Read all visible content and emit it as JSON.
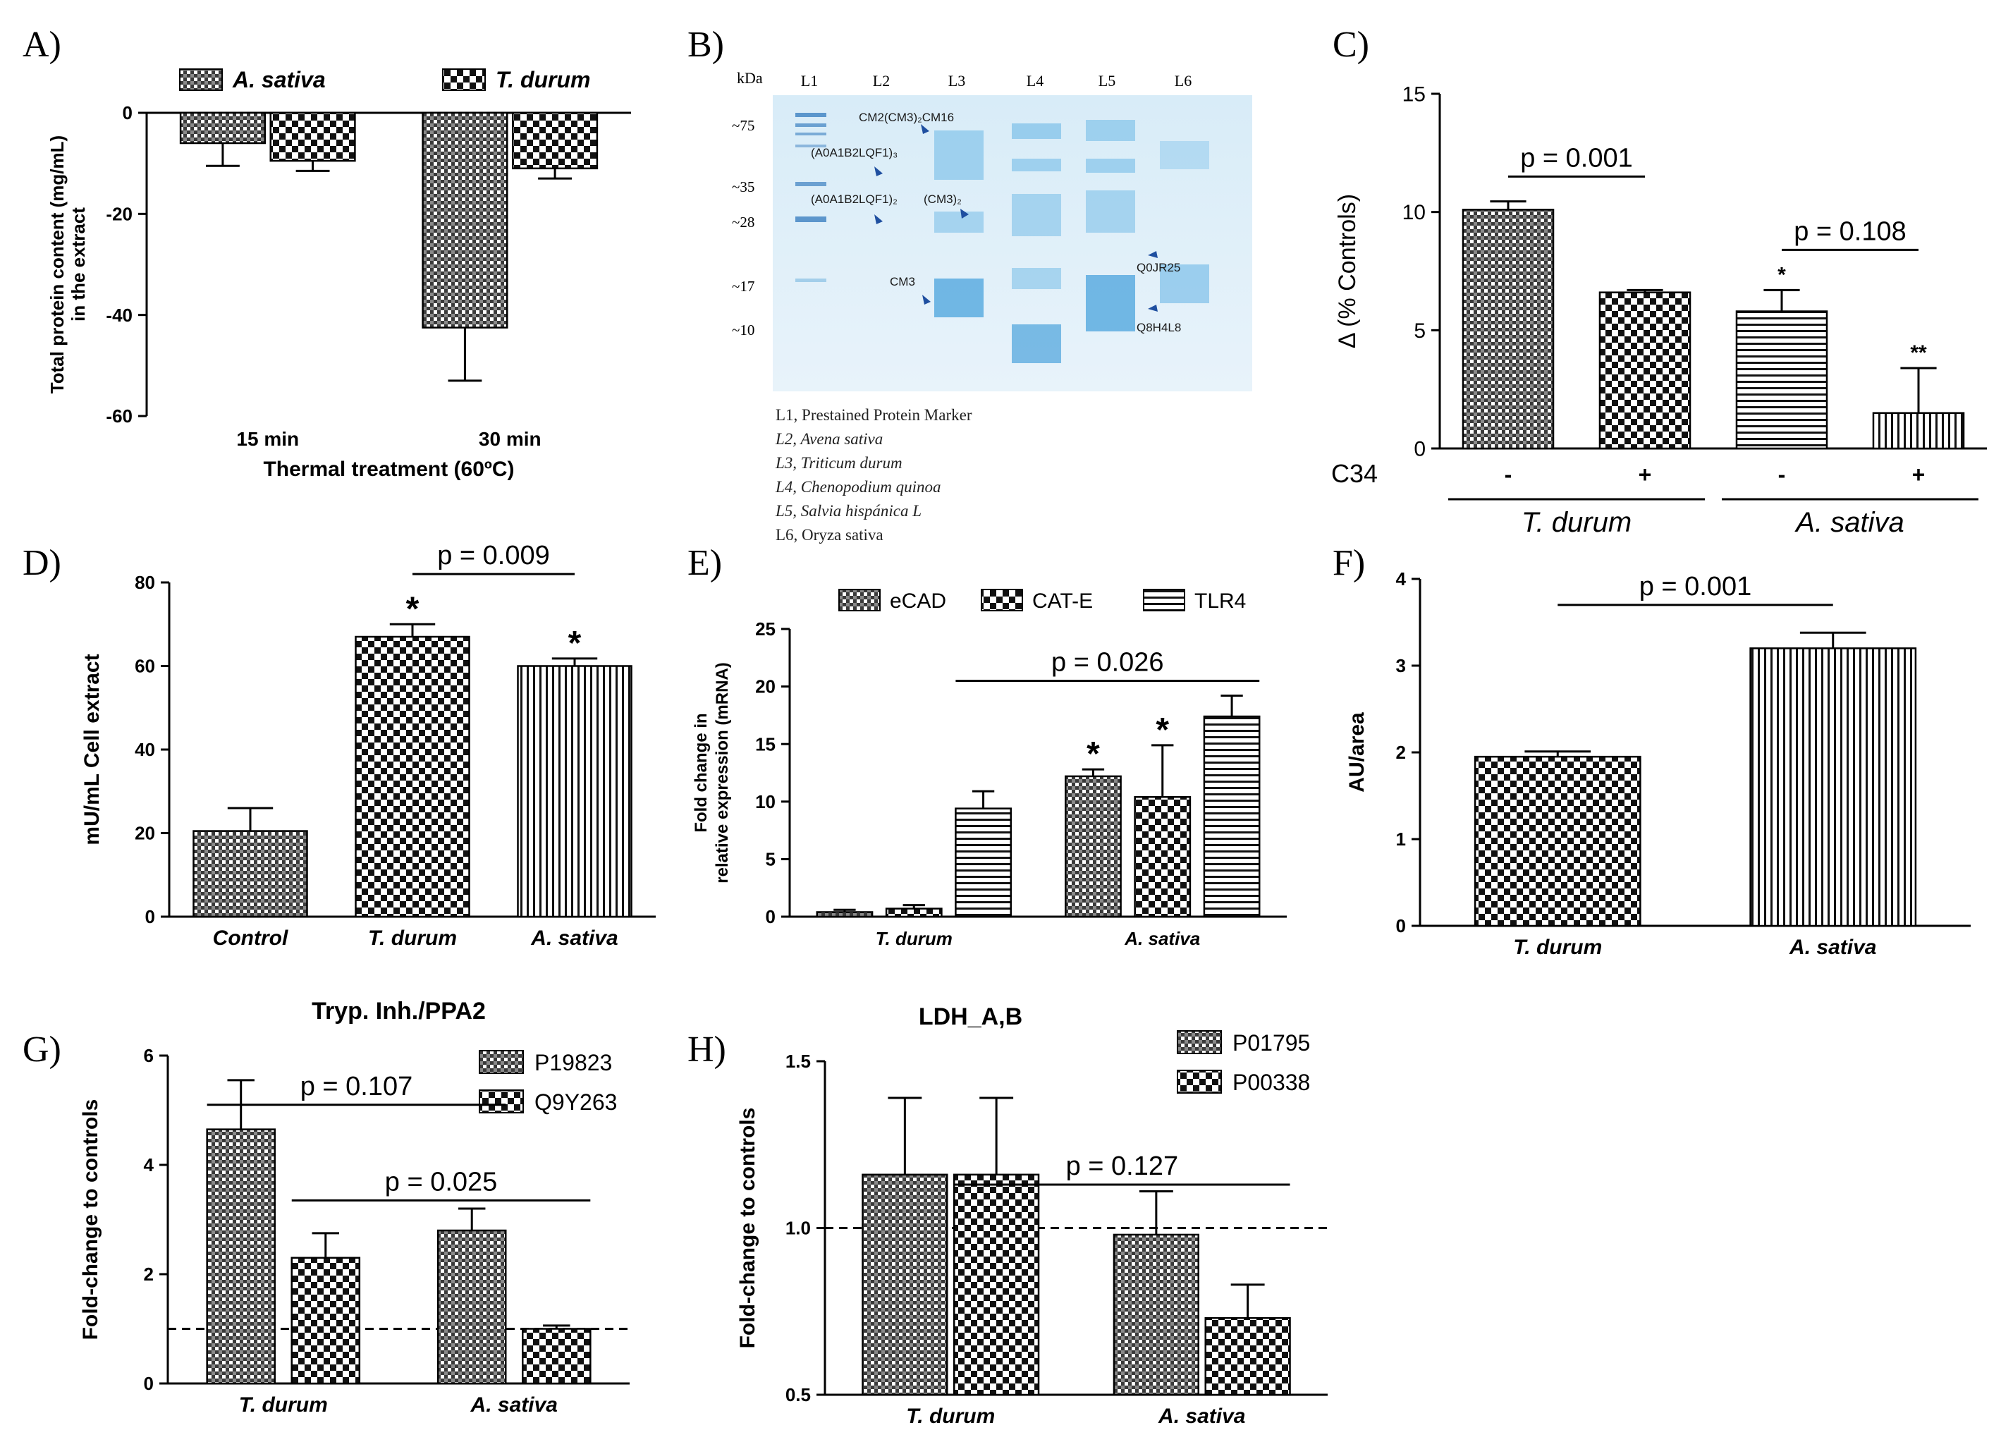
{
  "figure": {
    "panel_letters": [
      "A)",
      "B)",
      "C)",
      "D)",
      "E)",
      "F)",
      "G)",
      "H)"
    ]
  },
  "chart_data": [
    {
      "id": "A",
      "type": "bar",
      "title": "",
      "ylabel": "Total protein content (mg/mL)",
      "ylabel2": "in the extract",
      "xlabel": "Thermal treatment (60ºC)",
      "categories": [
        "15 min",
        "30 min"
      ],
      "series": [
        {
          "name": "A. sativa",
          "pattern": "hatch",
          "values": [
            -6,
            -42.5
          ],
          "err": [
            4.5,
            10.5
          ]
        },
        {
          "name": "T. durum",
          "pattern": "check",
          "values": [
            -9.5,
            -11
          ],
          "err": [
            2,
            2
          ]
        }
      ],
      "ylim": [
        -60,
        0
      ],
      "yticks": [
        0,
        -20,
        -40,
        -60
      ],
      "legend_position": "top",
      "stars": [],
      "brackets": []
    },
    {
      "id": "C",
      "type": "bar",
      "title": "",
      "ylabel": "Δ (% Controls)",
      "xlabel": "",
      "categories": [
        "-",
        "+",
        "-",
        "+"
      ],
      "category_groups": [
        {
          "label": "T. durum",
          "span": [
            0,
            1
          ]
        },
        {
          "label": "A. sativa",
          "span": [
            2,
            3
          ]
        }
      ],
      "row_label": "C34",
      "series": [
        {
          "name": "",
          "values": [
            10.1,
            6.6,
            5.8,
            1.5
          ],
          "err": [
            0.35,
            0.1,
            0.9,
            1.9
          ],
          "patterns": [
            "hatch",
            "check",
            "hline",
            "vline"
          ]
        }
      ],
      "ylim": [
        0,
        15
      ],
      "yticks": [
        0,
        5,
        10,
        15
      ],
      "stars": [
        {
          "bar": 2,
          "text": "*"
        },
        {
          "bar": 3,
          "text": "**"
        }
      ],
      "brackets": [
        {
          "from": 0,
          "to": 1,
          "y": 11.5,
          "label": "p = 0.001"
        },
        {
          "from": 2,
          "to": 3,
          "y": 8.4,
          "label": "p = 0.108"
        }
      ]
    },
    {
      "id": "D",
      "type": "bar",
      "title": "",
      "ylabel": "mU/mL Cell extract",
      "xlabel": "",
      "categories": [
        "Control",
        "T. durum",
        "A. sativa"
      ],
      "series": [
        {
          "name": "",
          "values": [
            20.5,
            67,
            60
          ],
          "err": [
            5.5,
            3,
            1.8
          ],
          "patterns": [
            "hatch",
            "check",
            "vline"
          ]
        }
      ],
      "ylim": [
        0,
        80
      ],
      "yticks": [
        0,
        20,
        40,
        60,
        80
      ],
      "stars": [
        {
          "bar": 1,
          "text": "*"
        },
        {
          "bar": 2,
          "text": "*"
        }
      ],
      "brackets": [
        {
          "from": 1,
          "to": 2,
          "y": 82,
          "label": "p = 0.009"
        }
      ]
    },
    {
      "id": "E",
      "type": "bar",
      "title": "",
      "ylabel": "Fold change in",
      "ylabel2": "relative expression (mRNA)",
      "xlabel": "",
      "categories": [
        "T. durum",
        "A. sativa"
      ],
      "series": [
        {
          "name": "eCAD",
          "pattern": "hatch",
          "values": [
            0.4,
            12.2
          ],
          "err": [
            0.2,
            0.6
          ]
        },
        {
          "name": "CAT-E",
          "pattern": "check",
          "values": [
            0.7,
            10.4
          ],
          "err": [
            0.3,
            4.5
          ]
        },
        {
          "name": "TLR4",
          "pattern": "hline",
          "values": [
            9.4,
            17.4
          ],
          "err": [
            1.5,
            1.8
          ]
        }
      ],
      "ylim": [
        0,
        25
      ],
      "yticks": [
        0,
        5,
        10,
        15,
        20,
        25
      ],
      "legend_position": "top",
      "stars": [
        {
          "series": 0,
          "cat": 1,
          "text": "*"
        },
        {
          "series": 1,
          "cat": 1,
          "text": "*"
        }
      ],
      "brackets": [
        {
          "from_bar": [
            2,
            0
          ],
          "to_bar": [
            2,
            1
          ],
          "y": 20.5,
          "label": "p = 0.026"
        }
      ]
    },
    {
      "id": "F",
      "type": "bar",
      "title": "",
      "ylabel": "AU/area",
      "xlabel": "",
      "categories": [
        "T. durum",
        "A. sativa"
      ],
      "series": [
        {
          "name": "",
          "values": [
            1.95,
            3.2
          ],
          "err": [
            0.06,
            0.18
          ],
          "patterns": [
            "check",
            "vline"
          ]
        }
      ],
      "ylim": [
        0,
        4
      ],
      "yticks": [
        0,
        1,
        2,
        3,
        4
      ],
      "stars": [],
      "brackets": [
        {
          "from": 0,
          "to": 1,
          "y": 3.7,
          "label": "p = 0.001"
        }
      ]
    },
    {
      "id": "G",
      "type": "bar",
      "title": "Tryp. Inh./PPA2",
      "ylabel": "Fold-change to controls",
      "xlabel": "",
      "categories": [
        "T. durum",
        "A. sativa"
      ],
      "series": [
        {
          "name": "P19823",
          "pattern": "hatch",
          "values": [
            4.65,
            2.8
          ],
          "err": [
            0.9,
            0.4
          ]
        },
        {
          "name": "Q9Y263",
          "pattern": "check",
          "values": [
            2.3,
            1.0
          ],
          "err": [
            0.45,
            0.06
          ]
        }
      ],
      "ylim": [
        0,
        6
      ],
      "yticks": [
        0,
        2,
        4,
        6
      ],
      "reference_line": 1,
      "legend_position": "top-right",
      "stars": [],
      "brackets": [
        {
          "from_bar": [
            0,
            0
          ],
          "to_bar": [
            0,
            1
          ],
          "y": 5.1,
          "label": "p = 0.107"
        },
        {
          "from_bar": [
            1,
            0
          ],
          "to_bar": [
            1,
            1
          ],
          "y": 3.35,
          "label": "p = 0.025"
        }
      ]
    },
    {
      "id": "H",
      "type": "bar",
      "title": "LDH_A,B",
      "ylabel": "Fold-change to controls",
      "xlabel": "",
      "categories": [
        "T. durum",
        "A. sativa"
      ],
      "series": [
        {
          "name": "P01795",
          "pattern": "hatch",
          "values": [
            1.16,
            0.98
          ],
          "err": [
            0.23,
            0.13
          ]
        },
        {
          "name": "P00338",
          "pattern": "check",
          "values": [
            1.16,
            0.73
          ],
          "err": [
            0.23,
            0.1
          ]
        }
      ],
      "ylim": [
        0.5,
        1.5
      ],
      "yticks": [
        0.5,
        1.0,
        1.5
      ],
      "reference_line": 1.0,
      "legend_position": "top-right",
      "stars": [],
      "brackets": [
        {
          "from_bar": [
            1,
            0
          ],
          "to_bar": [
            1,
            1
          ],
          "y": 1.13,
          "label": "p = 0.127"
        }
      ]
    }
  ],
  "gel": {
    "kda_label": "kDa",
    "lanes": [
      "L1",
      "L2",
      "L3",
      "L4",
      "L5",
      "L6"
    ],
    "markers": [
      "~75",
      "~35",
      "~28",
      "~17",
      "~10"
    ],
    "annotations": [
      "CM2(CM3)₂CM16",
      "(A0A1B2LQF1)₃",
      "(A0A1B2LQF1)₂",
      "(CM3)₂",
      "CM3",
      "Q0JR25",
      "Q8H4L8"
    ],
    "legend": [
      "L1, Prestained Protein Marker",
      "L2, Avena sativa",
      "L3, Triticum durum",
      "L4, Chenopodium quinoa",
      "L5, Salvia hispánica L",
      "L6, Oryza sativa"
    ]
  }
}
